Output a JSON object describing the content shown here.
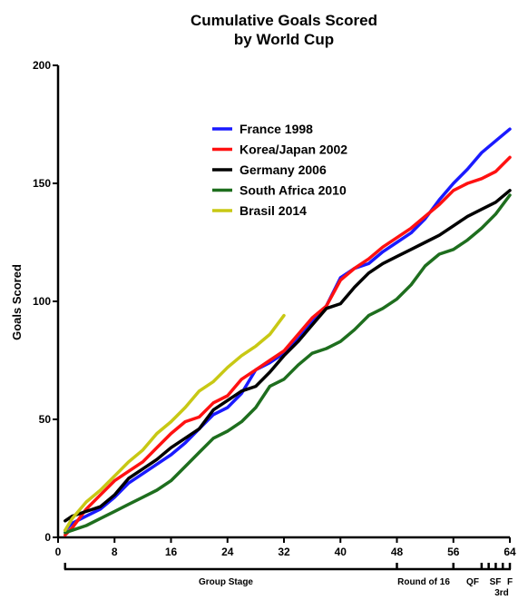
{
  "chart_data": {
    "type": "line",
    "title": [
      "Cumulative Goals Scored",
      "by World Cup"
    ],
    "xlabel": "",
    "ylabel": "Goals Scored",
    "xlim": [
      0,
      64
    ],
    "ylim": [
      0,
      200
    ],
    "x_ticks": [
      0,
      8,
      16,
      24,
      32,
      40,
      48,
      56,
      64
    ],
    "y_ticks": [
      0,
      50,
      100,
      150,
      200
    ],
    "grid": false,
    "legend_position": "upper-center",
    "stages": [
      {
        "label": "Group Stage",
        "start": 1,
        "end": 48
      },
      {
        "label": "Round of 16",
        "start": 48,
        "end": 56
      },
      {
        "label": "QF",
        "start": 56,
        "end": 60
      },
      {
        "label": "SF",
        "start": 60,
        "end": 62
      },
      {
        "label": "3rd",
        "start": 62,
        "end": 63
      },
      {
        "label": "F",
        "start": 63,
        "end": 64
      }
    ],
    "stage_ticks": [
      1,
      48,
      56,
      60,
      61,
      62,
      63,
      64
    ],
    "series": [
      {
        "name": "France 1998",
        "color": "#1a1aff",
        "x": [
          1,
          2,
          4,
          6,
          8,
          10,
          12,
          14,
          16,
          18,
          20,
          22,
          24,
          26,
          28,
          30,
          32,
          34,
          36,
          38,
          40,
          42,
          44,
          46,
          48,
          50,
          52,
          54,
          56,
          58,
          60,
          62,
          64
        ],
        "y": [
          3,
          6,
          9,
          12,
          17,
          23,
          27,
          31,
          35,
          40,
          46,
          52,
          55,
          61,
          71,
          74,
          78,
          84,
          91,
          98,
          110,
          114,
          116,
          121,
          125,
          129,
          135,
          143,
          150,
          156,
          163,
          168,
          173
        ]
      },
      {
        "name": "Korea/Japan 2002",
        "color": "#ff1111",
        "x": [
          1,
          2,
          4,
          6,
          8,
          10,
          12,
          14,
          16,
          18,
          20,
          22,
          24,
          26,
          28,
          30,
          32,
          34,
          36,
          38,
          40,
          42,
          44,
          46,
          48,
          50,
          52,
          54,
          56,
          58,
          60,
          62,
          64
        ],
        "y": [
          1,
          4,
          12,
          18,
          24,
          28,
          32,
          38,
          44,
          49,
          51,
          57,
          60,
          67,
          71,
          75,
          79,
          86,
          93,
          98,
          109,
          114,
          118,
          123,
          127,
          131,
          136,
          141,
          147,
          150,
          152,
          155,
          161
        ]
      },
      {
        "name": "Germany 2006",
        "color": "#000000",
        "x": [
          1,
          2,
          4,
          6,
          8,
          10,
          12,
          14,
          16,
          18,
          20,
          22,
          24,
          26,
          28,
          30,
          32,
          34,
          36,
          38,
          40,
          42,
          44,
          46,
          48,
          50,
          52,
          54,
          56,
          58,
          60,
          62,
          64
        ],
        "y": [
          7,
          9,
          11,
          13,
          18,
          25,
          29,
          33,
          38,
          42,
          46,
          54,
          58,
          62,
          64,
          70,
          77,
          83,
          90,
          97,
          99,
          106,
          112,
          116,
          119,
          122,
          125,
          128,
          132,
          136,
          139,
          142,
          147
        ]
      },
      {
        "name": "South Africa 2010",
        "color": "#1e6e1e",
        "x": [
          1,
          2,
          4,
          6,
          8,
          10,
          12,
          14,
          16,
          18,
          20,
          22,
          24,
          26,
          28,
          30,
          32,
          34,
          36,
          38,
          40,
          42,
          44,
          46,
          48,
          50,
          52,
          54,
          56,
          58,
          60,
          62,
          64
        ],
        "y": [
          2,
          3,
          5,
          8,
          11,
          14,
          17,
          20,
          24,
          30,
          36,
          42,
          45,
          49,
          55,
          64,
          67,
          73,
          78,
          80,
          83,
          88,
          94,
          97,
          101,
          107,
          115,
          120,
          122,
          126,
          131,
          137,
          145
        ]
      },
      {
        "name": "Brasil 2014",
        "color": "#c8c814",
        "x": [
          1,
          2,
          4,
          6,
          8,
          10,
          12,
          14,
          16,
          18,
          20,
          22,
          24,
          26,
          28,
          30,
          32
        ],
        "y": [
          3,
          8,
          15,
          20,
          26,
          32,
          37,
          44,
          49,
          55,
          62,
          66,
          72,
          77,
          81,
          86,
          94
        ]
      }
    ]
  }
}
